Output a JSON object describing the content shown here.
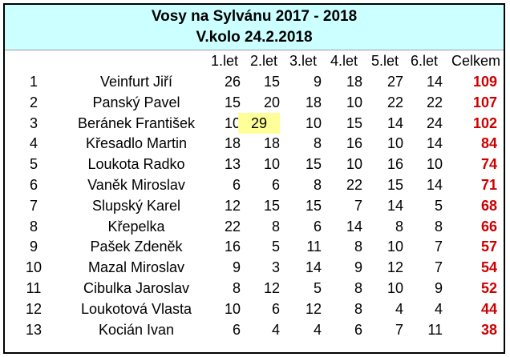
{
  "header": {
    "title": "Vosy na Sylvánu 2017 - 2018",
    "subtitle": "V.kolo 24.2.2018"
  },
  "columns": [
    "1.let",
    "2.let",
    "3.let",
    "4.let",
    "5.let",
    "6.let",
    "Celkem"
  ],
  "rows": [
    {
      "rank": "1",
      "name": "Veinfurt Jiří",
      "scores": [
        "26",
        "15",
        "9",
        "18",
        "27",
        "14"
      ],
      "total": "109"
    },
    {
      "rank": "2",
      "name": "Panský Pavel",
      "scores": [
        "15",
        "20",
        "18",
        "10",
        "22",
        "22"
      ],
      "total": "107"
    },
    {
      "rank": "3",
      "name": "Beránek František",
      "scores": [
        "10",
        "29",
        "10",
        "15",
        "14",
        "24"
      ],
      "total": "102"
    },
    {
      "rank": "4",
      "name": "Křesadlo Martin",
      "scores": [
        "18",
        "18",
        "8",
        "16",
        "10",
        "14"
      ],
      "total": "84"
    },
    {
      "rank": "5",
      "name": "Loukota Radko",
      "scores": [
        "13",
        "10",
        "15",
        "10",
        "16",
        "10"
      ],
      "total": "74"
    },
    {
      "rank": "6",
      "name": "Vaněk Miroslav",
      "scores": [
        "6",
        "6",
        "8",
        "22",
        "15",
        "14"
      ],
      "total": "71"
    },
    {
      "rank": "7",
      "name": "Slupský Karel",
      "scores": [
        "12",
        "15",
        "15",
        "7",
        "14",
        "5"
      ],
      "total": "68"
    },
    {
      "rank": "8",
      "name": "Křepelka",
      "scores": [
        "22",
        "8",
        "6",
        "14",
        "8",
        "8"
      ],
      "total": "66"
    },
    {
      "rank": "9",
      "name": "Pašek Zdeněk",
      "scores": [
        "16",
        "5",
        "11",
        "8",
        "10",
        "7"
      ],
      "total": "57"
    },
    {
      "rank": "10",
      "name": "Mazal Miroslav",
      "scores": [
        "9",
        "3",
        "14",
        "9",
        "12",
        "7"
      ],
      "total": "54"
    },
    {
      "rank": "11",
      "name": "Cibulka Jaroslav",
      "scores": [
        "8",
        "12",
        "5",
        "8",
        "10",
        "9"
      ],
      "total": "52"
    },
    {
      "rank": "12",
      "name": "Loukotová Vlasta",
      "scores": [
        "10",
        "6",
        "12",
        "8",
        "4",
        "4"
      ],
      "total": "44"
    },
    {
      "rank": "13",
      "name": "Kocián Ivan",
      "scores": [
        "6",
        "4",
        "4",
        "6",
        "7",
        "11"
      ],
      "total": "38"
    }
  ],
  "highlight": {
    "row": 2,
    "col": 1,
    "color": "#ffff99"
  },
  "colors": {
    "title_band": "#ccffff",
    "total_text": "#cc0000"
  }
}
